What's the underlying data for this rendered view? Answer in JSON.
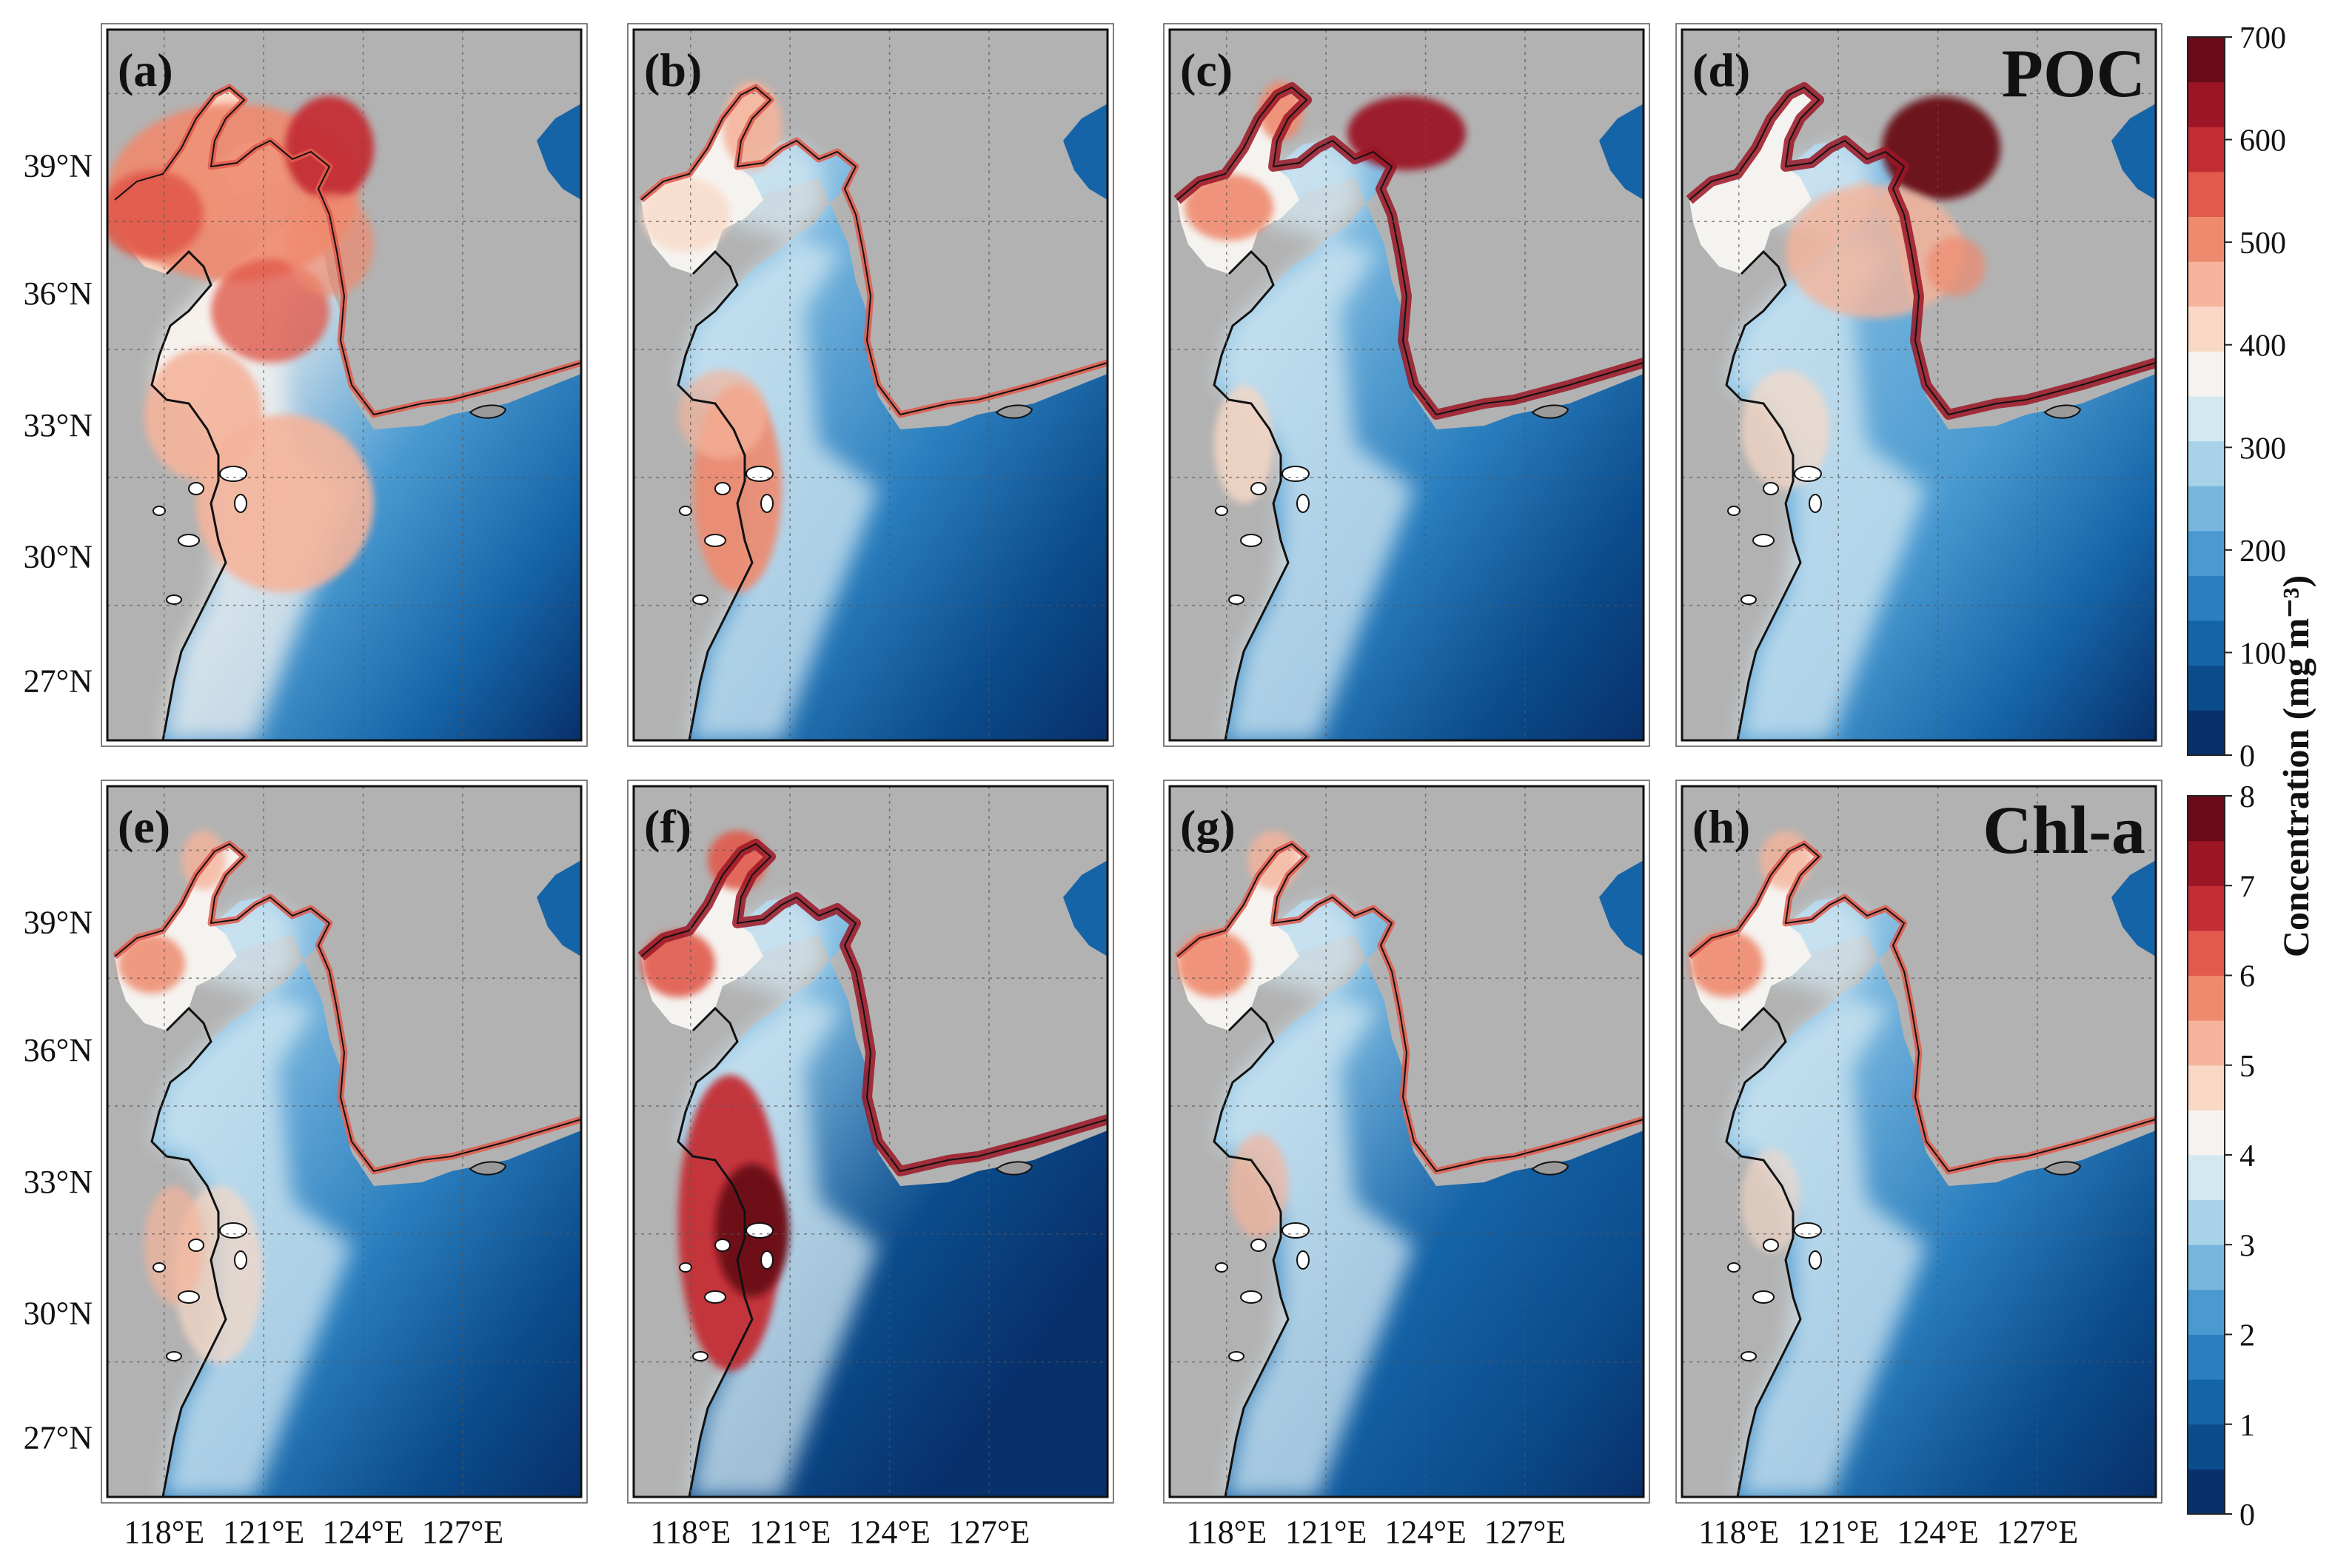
{
  "figure": {
    "panels": [
      {
        "label": "(a)",
        "row": 0,
        "col": 0,
        "variable": "POC",
        "coast_accent": false
      },
      {
        "label": "(b)",
        "row": 0,
        "col": 1,
        "variable": "POC",
        "coast_accent": false
      },
      {
        "label": "(c)",
        "row": 0,
        "col": 2,
        "variable": "POC",
        "coast_accent": true
      },
      {
        "label": "(d)",
        "row": 0,
        "col": 3,
        "variable": "POC",
        "coast_accent": true
      },
      {
        "label": "(e)",
        "row": 1,
        "col": 0,
        "variable": "Chl-a",
        "coast_accent": false
      },
      {
        "label": "(f)",
        "row": 1,
        "col": 1,
        "variable": "Chl-a",
        "coast_accent": true
      },
      {
        "label": "(g)",
        "row": 1,
        "col": 2,
        "variable": "Chl-a",
        "coast_accent": false
      },
      {
        "label": "(h)",
        "row": 1,
        "col": 3,
        "variable": "Chl-a",
        "coast_accent": false
      }
    ],
    "row_titles": [
      "POC",
      "Chl-a"
    ],
    "lat_ticks": [
      "39°N",
      "36°N",
      "33°N",
      "30°N",
      "27°N"
    ],
    "lon_ticks": [
      "118°E",
      "121°E",
      "124°E",
      "127°E"
    ],
    "colorbars": [
      {
        "ticks": [
          "0",
          "100",
          "200",
          "300",
          "400",
          "500",
          "600",
          "700"
        ]
      },
      {
        "ticks": [
          "0",
          "1",
          "2",
          "3",
          "4",
          "5",
          "6",
          "7",
          "8"
        ]
      }
    ],
    "colorbar_label": "Concentration (mg m⁻³)",
    "colors": {
      "land": "#b2b2b2",
      "deep": "#0a3d79",
      "mid": "#2a86c2",
      "light": "#a8d2e8",
      "white": "#f4f1ee",
      "red_light": "#f5b49b",
      "red": "#d7393a",
      "red_dark": "#7c0b1c"
    },
    "colormap": [
      "#08306b",
      "#0b4c8c",
      "#1564a8",
      "#2b7fbf",
      "#4a9ad1",
      "#78b6de",
      "#a8d2e8",
      "#d4e8f2",
      "#f5f3f0",
      "#f9d9c6",
      "#f5b49b",
      "#ef8a6e",
      "#e15a4c",
      "#c42d34",
      "#9b1525",
      "#6a0a17"
    ]
  }
}
